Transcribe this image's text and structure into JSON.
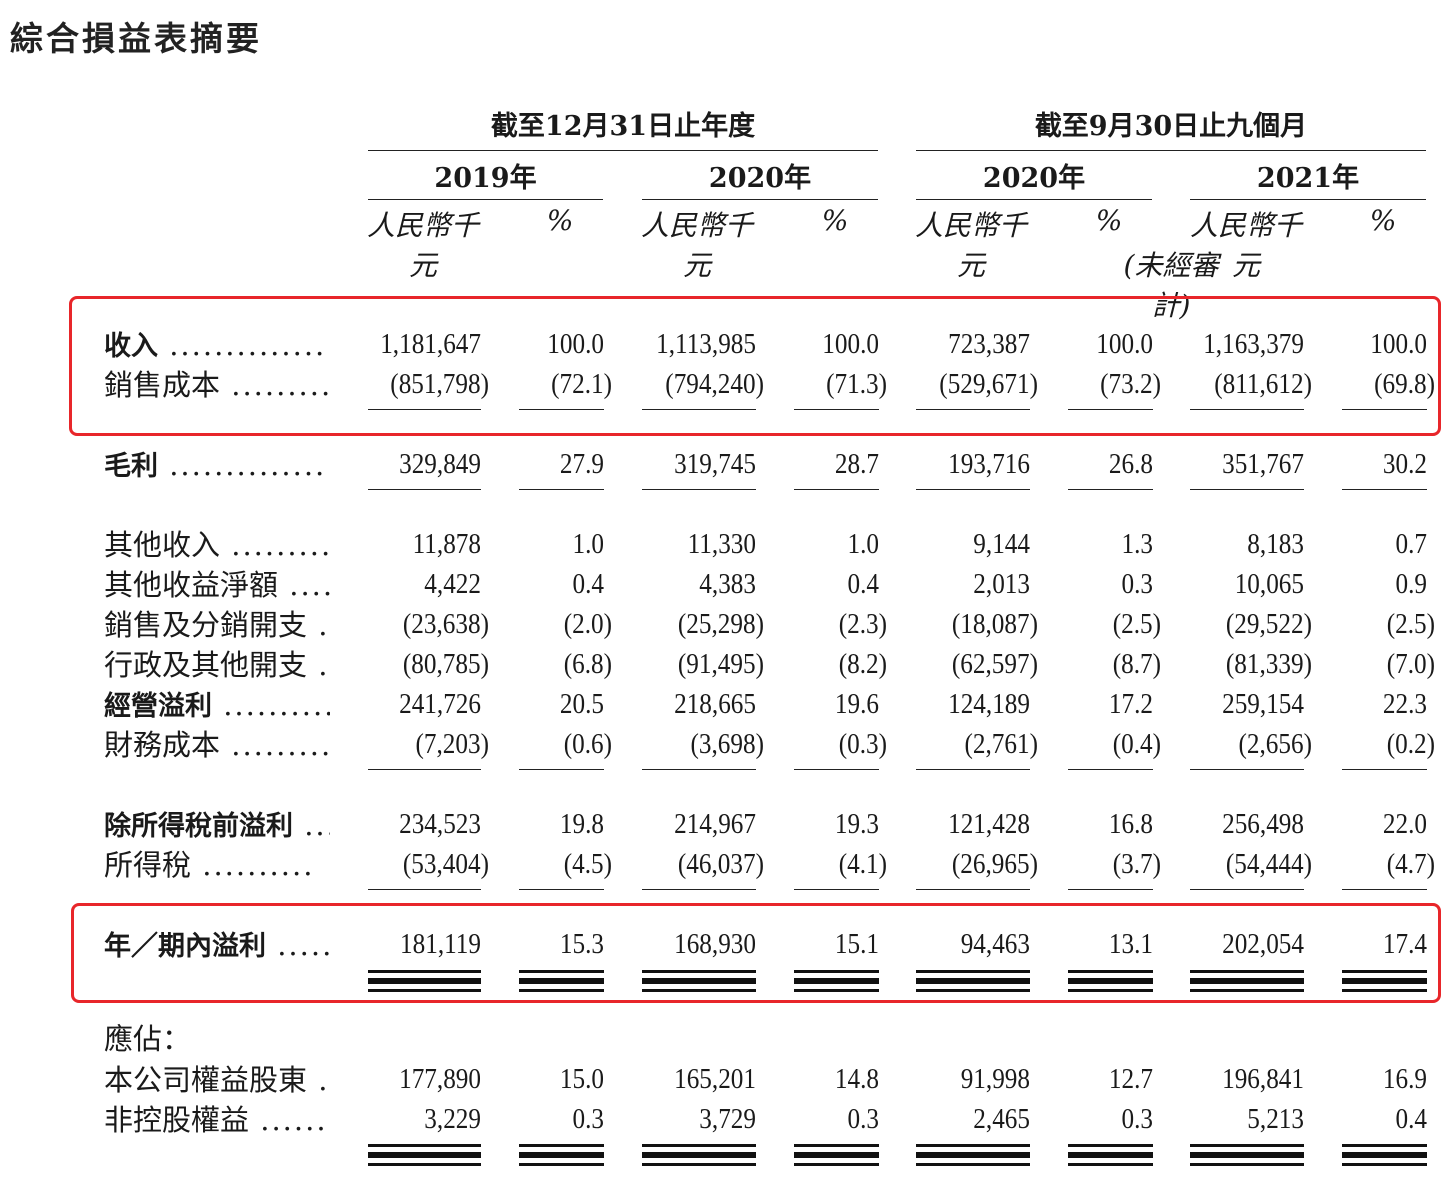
{
  "title": "綜合損益表摘要",
  "groups": [
    "截至12月31日止年度",
    "截至9月30日止九個月"
  ],
  "years": [
    "2019年",
    "2020年",
    "2020年",
    "2021年"
  ],
  "unit_rmb": "人民幣千元",
  "unit_pct": "%",
  "unaudited": "(未經審計)",
  "rows": [
    {
      "label": "收入",
      "dots": "..............",
      "bold": true,
      "values": [
        "1,181,647",
        "100.0",
        "1,113,985",
        "100.0",
        "723,387",
        "100.0",
        "1,163,379",
        "100.0"
      ]
    },
    {
      "label": "銷售成本",
      "dots": "..........",
      "bold": false,
      "values": [
        "(851,798)",
        "(72.1)",
        "(794,240)",
        "(71.3)",
        "(529,671)",
        "(73.2)",
        "(811,612)",
        "(69.8)"
      ]
    },
    {
      "label": "毛利",
      "dots": "..............",
      "bold": true,
      "values": [
        "329,849",
        "27.9",
        "319,745",
        "28.7",
        "193,716",
        "26.8",
        "351,767",
        "30.2"
      ]
    },
    {
      "label": "其他收入",
      "dots": "..........",
      "bold": false,
      "values": [
        "11,878",
        "1.0",
        "11,330",
        "1.0",
        "9,144",
        "1.3",
        "8,183",
        "0.7"
      ]
    },
    {
      "label": "其他收益淨額",
      "dots": "......",
      "bold": false,
      "values": [
        "4,422",
        "0.4",
        "4,383",
        "0.4",
        "2,013",
        "0.3",
        "10,065",
        "0.9"
      ]
    },
    {
      "label": "銷售及分銷開支",
      "dots": "....",
      "bold": false,
      "values": [
        "(23,638)",
        "(2.0)",
        "(25,298)",
        "(2.3)",
        "(18,087)",
        "(2.5)",
        "(29,522)",
        "(2.5)"
      ]
    },
    {
      "label": "行政及其他開支",
      "dots": "....",
      "bold": false,
      "values": [
        "(80,785)",
        "(6.8)",
        "(91,495)",
        "(8.2)",
        "(62,597)",
        "(8.7)",
        "(81,339)",
        "(7.0)"
      ]
    },
    {
      "label": "經營溢利",
      "dots": "..........",
      "bold": true,
      "values": [
        "241,726",
        "20.5",
        "218,665",
        "19.6",
        "124,189",
        "17.2",
        "259,154",
        "22.3"
      ]
    },
    {
      "label": "財務成本",
      "dots": "..........",
      "bold": false,
      "values": [
        "(7,203)",
        "(0.6)",
        "(3,698)",
        "(0.3)",
        "(2,761)",
        "(0.4)",
        "(2,656)",
        "(0.2)"
      ]
    },
    {
      "label": "除所得稅前溢利",
      "dots": "....",
      "bold": true,
      "values": [
        "234,523",
        "19.8",
        "214,967",
        "19.3",
        "121,428",
        "16.8",
        "256,498",
        "22.0"
      ]
    },
    {
      "label": "所得稅",
      "dots": "..........",
      "bold": false,
      "values": [
        "(53,404)",
        "(4.5)",
        "(46,037)",
        "(4.1)",
        "(26,965)",
        "(3.7)",
        "(54,444)",
        "(4.7)"
      ]
    },
    {
      "label": "年／期內溢利",
      "dots": "......",
      "bold": true,
      "values": [
        "181,119",
        "15.3",
        "168,930",
        "15.1",
        "94,463",
        "13.1",
        "202,054",
        "17.4"
      ]
    },
    {
      "label": "應佔：",
      "dots": "",
      "bold": false,
      "values": []
    },
    {
      "label": "本公司權益股東",
      "dots": "....",
      "bold": false,
      "values": [
        "177,890",
        "15.0",
        "165,201",
        "14.8",
        "91,998",
        "12.7",
        "196,841",
        "16.9"
      ]
    },
    {
      "label": "非控股權益",
      "dots": "........",
      "bold": false,
      "values": [
        "3,229",
        "0.3",
        "3,729",
        "0.3",
        "2,465",
        "0.3",
        "5,213",
        "0.4"
      ]
    }
  ],
  "accent_color": "#e8262a"
}
